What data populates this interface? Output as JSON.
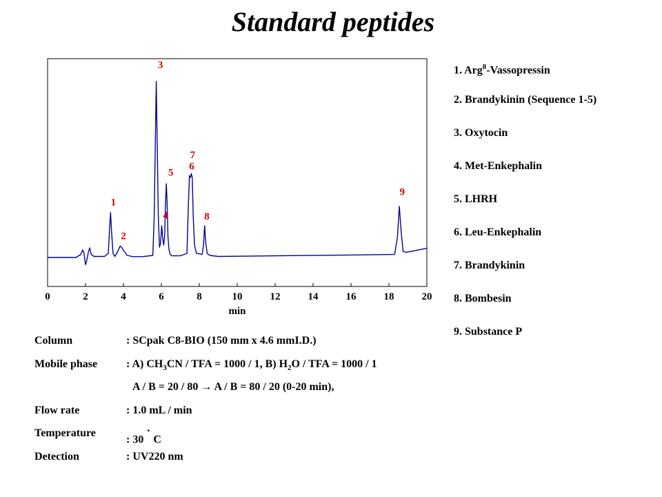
{
  "title": "Standard peptides",
  "chart_data": {
    "type": "line",
    "title": "",
    "xlabel": "min",
    "ylabel": "",
    "xlim": [
      0,
      20
    ],
    "ylim": [
      0,
      1
    ],
    "x_ticks": [
      0,
      2,
      4,
      6,
      8,
      10,
      12,
      14,
      16,
      18,
      20
    ],
    "grid": false,
    "series": [
      {
        "color": "#00009a",
        "x": [
          0.0,
          1.5,
          1.75,
          1.85,
          1.92,
          2.0,
          2.05,
          2.15,
          2.22,
          2.3,
          2.45,
          3.0,
          3.2,
          3.26,
          3.32,
          3.38,
          3.45,
          3.55,
          3.7,
          3.82,
          3.9,
          4.0,
          4.2,
          4.5,
          5.0,
          5.55,
          5.62,
          5.68,
          5.73,
          5.78,
          5.84,
          5.9,
          5.96,
          6.02,
          6.07,
          6.12,
          6.17,
          6.22,
          6.26,
          6.3,
          6.35,
          6.4,
          6.46,
          6.55,
          7.0,
          7.35,
          7.42,
          7.48,
          7.53,
          7.58,
          7.63,
          7.68,
          7.75,
          7.85,
          8.15,
          8.22,
          8.28,
          8.34,
          8.42,
          8.55,
          9.0,
          12.0,
          16.0,
          18.3,
          18.45,
          18.55,
          18.65,
          18.75,
          18.9,
          20.0
        ],
        "y": [
          0.0,
          0.0,
          0.015,
          0.037,
          0.02,
          -0.035,
          -0.02,
          0.025,
          0.047,
          0.015,
          0.005,
          0.005,
          0.02,
          0.12,
          0.22,
          0.12,
          0.02,
          0.005,
          0.03,
          0.055,
          0.05,
          0.035,
          0.01,
          0.004,
          0.004,
          0.01,
          0.2,
          0.55,
          0.86,
          0.55,
          0.2,
          0.05,
          0.07,
          0.155,
          0.1,
          0.06,
          0.1,
          0.27,
          0.36,
          0.27,
          0.1,
          0.04,
          0.015,
          0.008,
          0.008,
          0.02,
          0.25,
          0.4,
          0.39,
          0.41,
          0.39,
          0.2,
          0.06,
          0.02,
          0.015,
          0.06,
          0.155,
          0.07,
          0.02,
          0.01,
          0.005,
          0.008,
          0.012,
          0.015,
          0.1,
          0.25,
          0.12,
          0.03,
          0.025,
          0.045
        ]
      }
    ],
    "peak_labels": [
      {
        "text": "1",
        "x": 3.47,
        "y": 0.255
      },
      {
        "text": "2",
        "x": 4.0,
        "y": 0.09
      },
      {
        "text": "3",
        "x": 5.95,
        "y": 0.925
      },
      {
        "text": "4",
        "x": 6.22,
        "y": 0.19
      },
      {
        "text": "5",
        "x": 6.5,
        "y": 0.4
      },
      {
        "text": "6",
        "x": 7.6,
        "y": 0.43
      },
      {
        "text": "7",
        "x": 7.65,
        "y": 0.485
      },
      {
        "text": "8",
        "x": 8.4,
        "y": 0.185
      },
      {
        "text": "9",
        "x": 18.7,
        "y": 0.305
      }
    ]
  },
  "legend": [
    {
      "num": "1. Arg",
      "sup": "8",
      "rest": "-Vassopressin"
    },
    {
      "num": "2. Brandykinin (Sequence 1-5)"
    },
    {
      "num": "3. Oxytocin"
    },
    {
      "num": "4. Met-Enkephalin"
    },
    {
      "num": "5. LHRH"
    },
    {
      "num": "6. Leu-Enkephalin"
    },
    {
      "num": "7. Brandykinin"
    },
    {
      "num": "8. Bombesin"
    },
    {
      "num": "9. Substance P"
    }
  ],
  "conditions": {
    "column_label": "Column",
    "column_value": ": SCpak C8-BIO  (150 mm  x 4.6 mmI.D.)",
    "mobile_label": "Mobile phase",
    "mobile_a_prefix": ": A) CH",
    "mobile_a_sub1": "3",
    "mobile_a_mid": "CN / TFA = 1000 / 1, B) H",
    "mobile_a_sub2": "2",
    "mobile_a_end": "O / TFA = 1000 / 1",
    "gradient": "A / B = 20 / 80 → A / B = 80 / 20 (0-20 min),",
    "flow_label": "Flow rate",
    "flow_value": ": 1.0 mL / min",
    "temp_label": "Temperature",
    "temp_value": ": 30",
    "temp_degree": "˙",
    "temp_unit": "C",
    "detection_label": "Detection",
    "detection_value": ": UV220 nm"
  }
}
